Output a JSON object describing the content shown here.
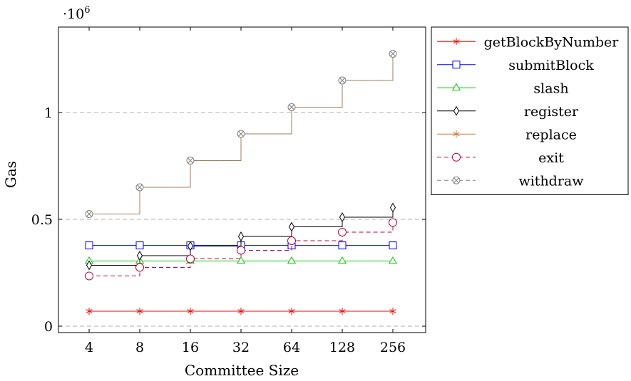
{
  "chart_data": {
    "type": "line",
    "xlabel": "Committee Size",
    "ylabel": "Gas",
    "y_multiplier_label": "·10",
    "y_multiplier_exp": "6",
    "categories": [
      "4",
      "8",
      "16",
      "32",
      "64",
      "128",
      "256"
    ],
    "ylim": [
      -0.03,
      1.4
    ],
    "yticks": [
      0,
      0.5,
      1
    ],
    "ytick_labels": [
      "0",
      "0.5",
      "1"
    ],
    "grid": "horizontal dashed at y ticks",
    "step": "const plot (steps right)",
    "legend_position": "outside-right-top",
    "series": [
      {
        "name": "getBlockByNumber",
        "color": "#ff0000",
        "marker": "asterisk",
        "dash": "solid",
        "values": [
          0.07,
          0.07,
          0.07,
          0.07,
          0.07,
          0.07,
          0.07
        ]
      },
      {
        "name": "submitBlock",
        "color": "#0000ff",
        "marker": "square",
        "dash": "solid",
        "values": [
          0.378,
          0.378,
          0.378,
          0.378,
          0.378,
          0.378,
          0.378
        ]
      },
      {
        "name": "slash",
        "color": "#00cc00",
        "marker": "triangle",
        "dash": "solid",
        "values": [
          0.305,
          0.305,
          0.305,
          0.305,
          0.305,
          0.305,
          0.305
        ]
      },
      {
        "name": "register",
        "color": "#000000",
        "marker": "diamond",
        "dash": "solid",
        "values": [
          0.285,
          0.33,
          0.375,
          0.42,
          0.465,
          0.51,
          0.555
        ]
      },
      {
        "name": "replace",
        "color": "#cc7a29",
        "marker": "star",
        "dash": "solid",
        "values": [
          0.525,
          0.65,
          0.775,
          0.9,
          1.025,
          1.15,
          1.275
        ]
      },
      {
        "name": "exit",
        "color": "#bf0040",
        "marker": "circle",
        "dash": "dashed",
        "values": [
          0.235,
          0.275,
          0.315,
          0.355,
          0.4,
          0.44,
          0.485
        ]
      },
      {
        "name": "withdraw",
        "color": "#808080",
        "marker": "otimes",
        "dash": "dashed",
        "values": [
          0.525,
          0.65,
          0.775,
          0.9,
          1.025,
          1.15,
          1.275
        ]
      }
    ]
  }
}
